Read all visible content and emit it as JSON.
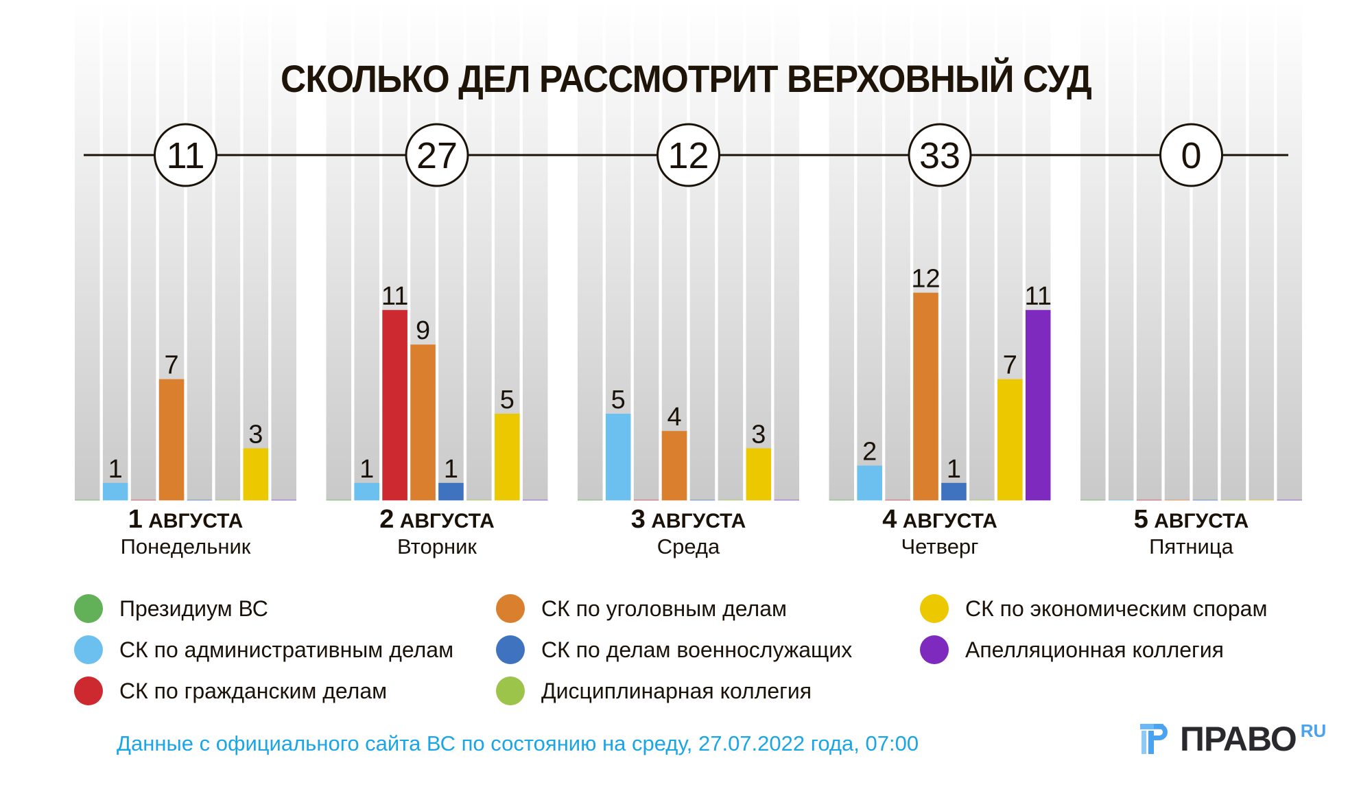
{
  "title": "СКОЛЬКО ДЕЛ РАССМОТРИТ ВЕРХОВНЫЙ СУД",
  "chart_data": {
    "type": "bar",
    "title": "СКОЛЬКО ДЕЛ РАССМОТРИТ ВЕРХОВНЫЙ СУД",
    "xlabel": "",
    "ylabel": "",
    "ylim": [
      0,
      14
    ],
    "grid": false,
    "legend_position": "bottom",
    "categories": [
      {
        "date_num": "1",
        "date_word": "АВГУСТА",
        "weekday": "Понедельник",
        "total": "11"
      },
      {
        "date_num": "2",
        "date_word": "АВГУСТА",
        "weekday": "Вторник",
        "total": "27"
      },
      {
        "date_num": "3",
        "date_word": "АВГУСТА",
        "weekday": "Среда",
        "total": "12"
      },
      {
        "date_num": "4",
        "date_word": "АВГУСТА",
        "weekday": "Четверг",
        "total": "33"
      },
      {
        "date_num": "5",
        "date_word": "АВГУСТА",
        "weekday": "Пятница",
        "total": "0"
      }
    ],
    "series": [
      {
        "name": "Президиум ВС",
        "color": "#62b057",
        "values": [
          0,
          0,
          0,
          0,
          0
        ]
      },
      {
        "name": "СК по административным делам",
        "color": "#6cc0f0",
        "values": [
          1,
          1,
          5,
          2,
          0
        ]
      },
      {
        "name": "СК по гражданским делам",
        "color": "#cc2a30",
        "values": [
          0,
          11,
          0,
          0,
          0
        ]
      },
      {
        "name": "СК по уголовным делам",
        "color": "#da7f2e",
        "values": [
          7,
          9,
          4,
          12,
          0
        ]
      },
      {
        "name": "СК по делам военнослужащих",
        "color": "#3f72bf",
        "values": [
          0,
          1,
          0,
          1,
          0
        ]
      },
      {
        "name": "Дисциплинарная коллегия",
        "color": "#9dc44a",
        "values": [
          0,
          0,
          0,
          0,
          0
        ]
      },
      {
        "name": "СК по экономическим спорам",
        "color": "#ebc800",
        "values": [
          3,
          5,
          3,
          7,
          0
        ]
      },
      {
        "name": "Апелляционная коллегия",
        "color": "#7e2abf",
        "values": [
          0,
          0,
          0,
          11,
          0
        ]
      }
    ]
  },
  "legend": {
    "items": [
      {
        "label": "Президиум ВС",
        "color": "#62b057"
      },
      {
        "label": "СК по административным делам",
        "color": "#6cc0f0"
      },
      {
        "label": "СК по гражданским делам",
        "color": "#cc2a30"
      },
      {
        "label": "СК по уголовным делам",
        "color": "#da7f2e"
      },
      {
        "label": "СК по делам военнослужащих",
        "color": "#3f72bf"
      },
      {
        "label": "Дисциплинарная коллегия",
        "color": "#9dc44a"
      },
      {
        "label": "СК по экономическим спорам",
        "color": "#ebc800"
      },
      {
        "label": "Апелляционная коллегия",
        "color": "#7e2abf"
      }
    ]
  },
  "source_note": "Данные с официального сайта ВС по состоянию на среду, 27.07.2022 года, 07:00",
  "logo": {
    "text": "ПРАВО",
    "suffix": "RU",
    "mark_color": "#4aa3f0"
  }
}
